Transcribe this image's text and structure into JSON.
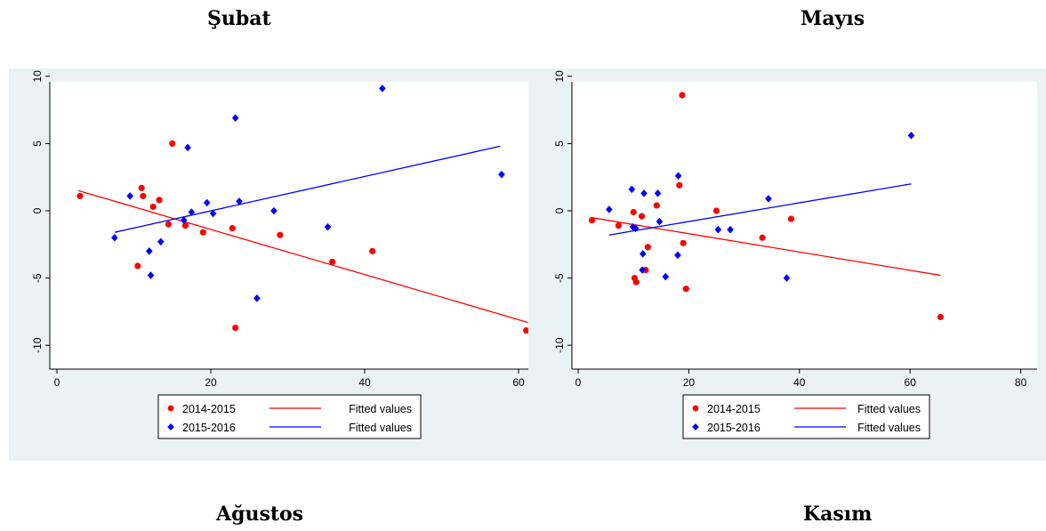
{
  "headings": {
    "top_left": "Şubat",
    "top_right": "Mayıs",
    "bottom_left": "Ağustos",
    "bottom_right": "Kasım"
  },
  "colors": {
    "series_2014_2015": "#ff0000",
    "series_2015_2016": "#0000ff",
    "panel_background": "#eaf2f3",
    "plot_background": "#ffffff"
  },
  "chart_data": [
    {
      "type": "scatter",
      "xlim": [
        0,
        62
      ],
      "ylim": [
        -10,
        10
      ],
      "x_ticks": [
        "0",
        "20",
        "40",
        "60"
      ],
      "y_ticks": [
        "-10",
        "-5",
        "0",
        "5",
        "10"
      ],
      "grid": false,
      "legend_position": "bottom",
      "legend_labels": [
        "2014-2015",
        "Fitted values",
        "2015-2016",
        "Fitted values"
      ],
      "series": [
        {
          "name": "2014-2015",
          "marker": "circle",
          "points": [
            [
              3,
              1.1
            ],
            [
              10.5,
              -4.1
            ],
            [
              11,
              1.7
            ],
            [
              11.2,
              1.1
            ],
            [
              12.5,
              0.3
            ],
            [
              13.3,
              0.8
            ],
            [
              14.5,
              -1
            ],
            [
              15,
              5
            ],
            [
              16.7,
              -1.1
            ],
            [
              19,
              -1.6
            ],
            [
              22.8,
              -1.3
            ],
            [
              23.2,
              -8.7
            ],
            [
              29,
              -1.8
            ],
            [
              35.8,
              -3.8
            ],
            [
              41,
              -3
            ],
            [
              61,
              -8.9
            ]
          ],
          "fit": [
            [
              2.8,
              1.5
            ],
            [
              61.2,
              -8.3
            ]
          ]
        },
        {
          "name": "2015-2016",
          "marker": "diamond",
          "points": [
            [
              7.5,
              -2
            ],
            [
              9.5,
              1.1
            ],
            [
              12,
              -3
            ],
            [
              12.2,
              -4.8
            ],
            [
              13.5,
              -2.3
            ],
            [
              16.5,
              -0.7
            ],
            [
              17,
              4.7
            ],
            [
              17.5,
              -0.1
            ],
            [
              19.5,
              0.6
            ],
            [
              20.3,
              -0.2
            ],
            [
              23.2,
              6.9
            ],
            [
              23.7,
              0.7
            ],
            [
              26,
              -6.5
            ],
            [
              28.2,
              0
            ],
            [
              35.2,
              -1.2
            ],
            [
              42.3,
              9.1
            ],
            [
              57.8,
              2.7
            ]
          ],
          "fit": [
            [
              7.5,
              -1.6
            ],
            [
              57.6,
              4.8
            ]
          ]
        }
      ]
    },
    {
      "type": "scatter",
      "xlim": [
        0,
        82
      ],
      "ylim": [
        -10,
        10
      ],
      "x_ticks": [
        "0",
        "20",
        "40",
        "60",
        "80"
      ],
      "y_ticks": [
        "-10",
        "-5",
        "0",
        "5",
        "10"
      ],
      "grid": false,
      "legend_position": "bottom",
      "legend_labels": [
        "2014-2015",
        "Fitted values",
        "2015-2016",
        "Fitted values"
      ],
      "series": [
        {
          "name": "2014-2015",
          "marker": "circle",
          "points": [
            [
              2.5,
              -0.7
            ],
            [
              7.3,
              -1.1
            ],
            [
              10,
              -0.1
            ],
            [
              10.2,
              -5
            ],
            [
              10.5,
              -5.3
            ],
            [
              11.5,
              -0.4
            ],
            [
              12.2,
              -4.4
            ],
            [
              12.6,
              -2.7
            ],
            [
              14.2,
              0.4
            ],
            [
              18.3,
              1.9
            ],
            [
              18.8,
              8.6
            ],
            [
              19,
              -2.4
            ],
            [
              19.5,
              -5.8
            ],
            [
              25,
              0
            ],
            [
              33.3,
              -2
            ],
            [
              38.5,
              -0.6
            ],
            [
              65.5,
              -7.9
            ]
          ],
          "fit": [
            [
              2.3,
              -0.5
            ],
            [
              65.5,
              -4.8
            ]
          ]
        },
        {
          "name": "2015-2016",
          "marker": "diamond",
          "points": [
            [
              5.6,
              0.1
            ],
            [
              9.7,
              1.6
            ],
            [
              9.9,
              -1.2
            ],
            [
              10.4,
              -1.3
            ],
            [
              11.6,
              -4.4
            ],
            [
              11.7,
              -3.2
            ],
            [
              11.9,
              1.3
            ],
            [
              14.4,
              1.3
            ],
            [
              14.7,
              -0.8
            ],
            [
              15.8,
              -4.9
            ],
            [
              18,
              -3.3
            ],
            [
              18.1,
              2.6
            ],
            [
              25.3,
              -1.4
            ],
            [
              27.5,
              -1.4
            ],
            [
              34.4,
              0.9
            ],
            [
              37.7,
              -5
            ],
            [
              60.2,
              5.6
            ]
          ],
          "fit": [
            [
              5.6,
              -1.8
            ],
            [
              60.2,
              2
            ]
          ]
        }
      ]
    }
  ]
}
